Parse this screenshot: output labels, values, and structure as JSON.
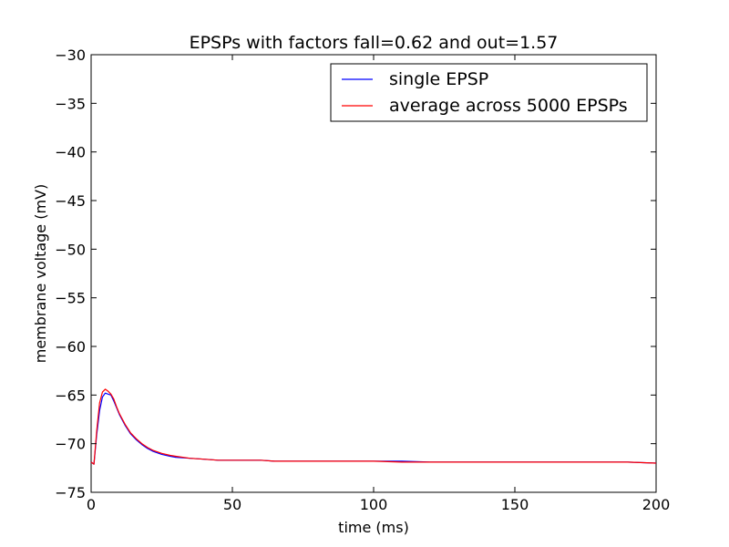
{
  "chart_data": {
    "type": "line",
    "title": "EPSPs with factors fall=0.62 and out=1.57",
    "xlabel": "time (ms)",
    "ylabel": "membrane voltage (mV)",
    "xlim": [
      0,
      200
    ],
    "ylim": [
      -75,
      -30
    ],
    "xticks": [
      0,
      50,
      100,
      150,
      200
    ],
    "xtick_labels": [
      "0",
      "50",
      "100",
      "150",
      "200"
    ],
    "yticks": [
      -75,
      -70,
      -65,
      -60,
      -55,
      -50,
      -45,
      -40,
      -35,
      -30
    ],
    "ytick_labels": [
      "−75",
      "−70",
      "−65",
      "−60",
      "−55",
      "−50",
      "−45",
      "−40",
      "−35",
      "−30"
    ],
    "grid": false,
    "legend_position": "top-right",
    "series": [
      {
        "name": "single EPSP",
        "color": "#0000ff",
        "x": [
          0,
          1,
          2,
          3,
          4,
          5,
          6,
          7,
          8,
          9,
          10,
          12,
          14,
          16,
          18,
          20,
          22,
          25,
          28,
          30,
          35,
          40,
          45,
          50,
          55,
          60,
          65,
          70,
          75,
          80,
          85,
          90,
          95,
          100,
          110,
          120,
          130,
          140,
          150,
          160,
          170,
          180,
          190,
          200
        ],
        "y": [
          -71.9,
          -72.1,
          -69.0,
          -66.6,
          -65.2,
          -64.8,
          -64.9,
          -65.0,
          -65.6,
          -66.3,
          -67.0,
          -68.1,
          -69.0,
          -69.6,
          -70.1,
          -70.5,
          -70.8,
          -71.1,
          -71.3,
          -71.4,
          -71.5,
          -71.6,
          -71.7,
          -71.7,
          -71.7,
          -71.7,
          -71.8,
          -71.8,
          -71.8,
          -71.8,
          -71.8,
          -71.8,
          -71.8,
          -71.8,
          -71.8,
          -71.9,
          -71.9,
          -71.9,
          -71.9,
          -71.9,
          -71.9,
          -71.9,
          -71.9,
          -72.0
        ]
      },
      {
        "name": "average across 5000 EPSPs",
        "color": "#ff0000",
        "x": [
          0,
          1,
          2,
          3,
          4,
          5,
          6,
          7,
          8,
          9,
          10,
          12,
          14,
          16,
          18,
          20,
          22,
          25,
          28,
          30,
          35,
          40,
          45,
          50,
          55,
          60,
          65,
          70,
          75,
          80,
          85,
          90,
          95,
          100,
          110,
          120,
          130,
          140,
          150,
          160,
          170,
          180,
          190,
          200
        ],
        "y": [
          -71.9,
          -72.1,
          -68.6,
          -65.8,
          -64.7,
          -64.4,
          -64.6,
          -64.9,
          -65.4,
          -66.2,
          -66.9,
          -68.0,
          -68.9,
          -69.5,
          -70.0,
          -70.4,
          -70.7,
          -71.0,
          -71.2,
          -71.3,
          -71.5,
          -71.6,
          -71.7,
          -71.7,
          -71.7,
          -71.7,
          -71.8,
          -71.8,
          -71.8,
          -71.8,
          -71.8,
          -71.8,
          -71.8,
          -71.8,
          -71.9,
          -71.9,
          -71.9,
          -71.9,
          -71.9,
          -71.9,
          -71.9,
          -71.9,
          -71.9,
          -72.0
        ]
      }
    ]
  }
}
